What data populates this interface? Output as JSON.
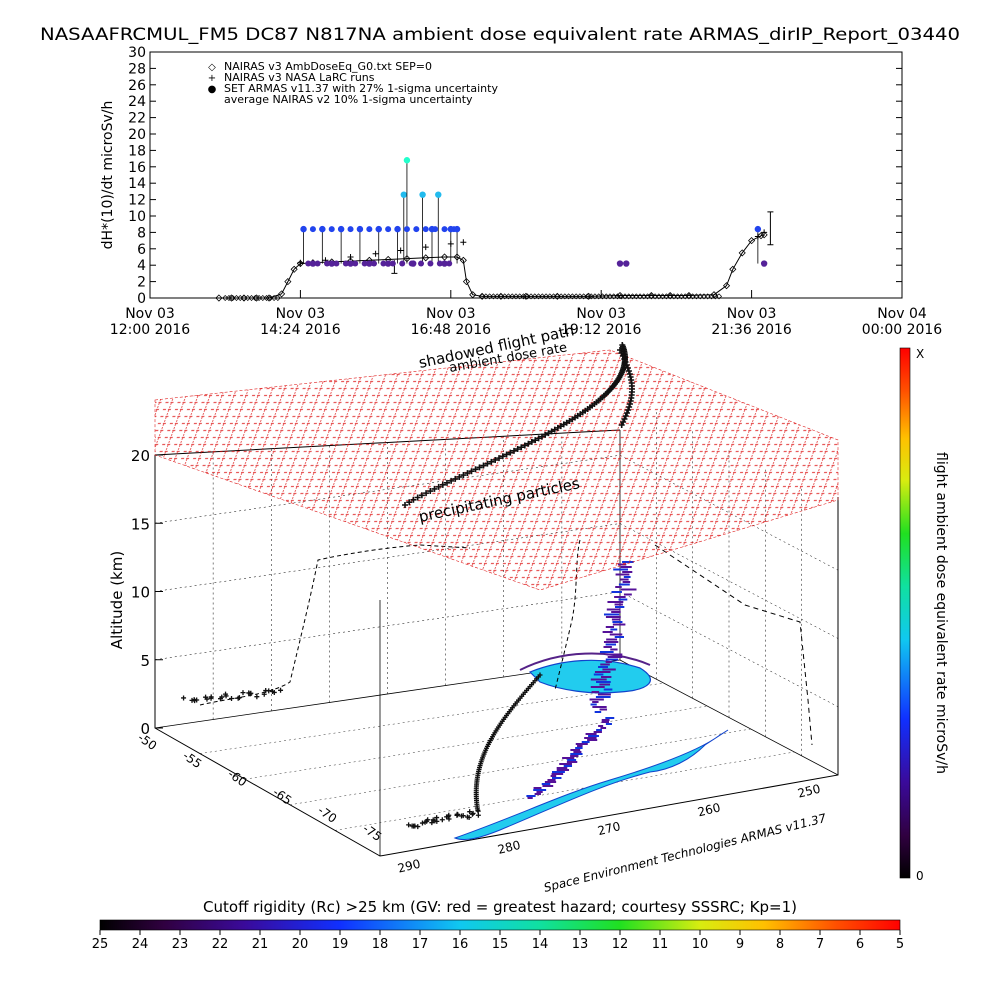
{
  "title": "NASAAFRCMUL_FM5 DC87 N817NA ambient dose equivalent rate ARMAS_dirIP_Report_03440",
  "colors": {
    "background": "#ffffff",
    "grid_red": "#dd1111",
    "armas_blue": "#1133dd",
    "armas_cyan": "#22ccee",
    "armas_purple": "#551199",
    "track": "#111111"
  },
  "chart_data": [
    {
      "type": "line",
      "name": "time-series",
      "ylabel": "dH*(10)/dt microSv/h",
      "ylim": [
        0,
        30
      ],
      "yticks": [
        0,
        2,
        4,
        6,
        8,
        10,
        12,
        14,
        16,
        18,
        20,
        22,
        24,
        26,
        28,
        30
      ],
      "xlim_hours": [
        12.0,
        24.0
      ],
      "xticks": [
        {
          "line1": "Nov 03",
          "line2": "12:00 2016",
          "hour": 12.0
        },
        {
          "line1": "Nov 03",
          "line2": "14:24 2016",
          "hour": 14.4
        },
        {
          "line1": "Nov 03",
          "line2": "16:48 2016",
          "hour": 16.8
        },
        {
          "line1": "Nov 03",
          "line2": "19:12 2016",
          "hour": 19.2
        },
        {
          "line1": "Nov 03",
          "line2": "21:36 2016",
          "hour": 21.6
        },
        {
          "line1": "Nov 04",
          "line2": "00:00 2016",
          "hour": 24.0
        }
      ],
      "legend": [
        {
          "symbol": "◇",
          "text": "NAIRAS v3 AmbDoseEq_G0.txt SEP=0"
        },
        {
          "symbol": "+",
          "text": "NAIRAS v3 NASA LaRC runs"
        },
        {
          "symbol": "●",
          "text": "SET ARMAS v11.37 with 27% 1-sigma uncertainty"
        },
        {
          "symbol": "",
          "text": "average NAIRAS v2 10% 1-sigma uncertainty"
        }
      ],
      "series": [
        {
          "name": "NAIRAS v3 AmbDoseEq_G0.txt SEP=0",
          "x": [
            13.1,
            13.3,
            13.5,
            13.7,
            13.9,
            14.1,
            14.2,
            14.3,
            14.4,
            14.6,
            14.9,
            15.2,
            15.5,
            15.8,
            16.1,
            16.4,
            16.7,
            16.9,
            17.0,
            17.05,
            17.15,
            17.3,
            17.6,
            18.0,
            18.5,
            19.0,
            19.5,
            20.0,
            20.3,
            20.6,
            21.0,
            21.2,
            21.3,
            21.45,
            21.6,
            21.75,
            21.8
          ],
          "y": [
            0,
            0,
            0,
            0,
            0,
            0.5,
            2.0,
            3.5,
            4.2,
            4.3,
            4.4,
            4.5,
            4.6,
            4.7,
            4.8,
            4.9,
            5.0,
            5.0,
            4.6,
            2.0,
            0.4,
            0.2,
            0.2,
            0.2,
            0.2,
            0.2,
            0.3,
            0.3,
            0.3,
            0.3,
            0.4,
            1.5,
            3.5,
            5.5,
            7.0,
            7.6,
            7.7
          ]
        },
        {
          "name": "NAIRAS v3 NASA LaRC runs",
          "x": [
            14.4,
            14.8,
            15.2,
            15.6,
            16.0,
            16.4,
            16.8,
            17.0,
            21.7,
            21.8
          ],
          "y": [
            4.3,
            4.6,
            5.0,
            5.4,
            5.8,
            6.2,
            6.6,
            6.8,
            7.5,
            8.0
          ]
        },
        {
          "name": "SET ARMAS v11.37 with 27% 1-sigma uncertainty",
          "x": [
            14.45,
            14.6,
            14.75,
            14.9,
            15.05,
            15.2,
            15.35,
            15.5,
            15.65,
            15.8,
            15.95,
            16.05,
            16.1,
            16.2,
            16.35,
            16.5,
            16.6,
            16.7,
            16.8,
            16.9,
            19.5,
            19.6,
            21.7,
            21.8
          ],
          "y": [
            8.4,
            4.2,
            8.4,
            4.2,
            8.4,
            4.2,
            8.4,
            4.2,
            8.4,
            4.2,
            8.4,
            12.6,
            16.8,
            4.2,
            12.6,
            8.4,
            12.6,
            4.2,
            8.4,
            8.4,
            4.2,
            4.2,
            8.4,
            4.2
          ]
        }
      ]
    },
    {
      "type": "scatter",
      "name": "3d-flight-path",
      "zlabel": "Altitude (km)",
      "zlim": [
        0,
        20
      ],
      "zticks": [
        0,
        5,
        10,
        15,
        20
      ],
      "lat_ticks": [
        "-50",
        "-55",
        "-60",
        "-65",
        "-70",
        "-75"
      ],
      "lon_ticks": [
        "250",
        "260",
        "270",
        "280",
        "290"
      ],
      "annotations": [
        "shadowed flight path",
        "ambient dose rate",
        "precipitating particles",
        "Space Environment Technologies ARMAS v11.37"
      ],
      "right_colorbar": {
        "label": "flight ambient dose equivalent rate microSv/h",
        "top": "X",
        "bottom": "0"
      }
    },
    {
      "type": "heatmap",
      "name": "cutoff-rigidity-colorbar",
      "label": "Cutoff rigidity (Rc) >25 km (GV: red = greatest hazard; courtesy SSSRC; Kp=1)",
      "ticks": [
        "25",
        "24",
        "23",
        "22",
        "21",
        "20",
        "19",
        "18",
        "17",
        "16",
        "15",
        "14",
        "13",
        "12",
        "11",
        "10",
        "9",
        "8",
        "7",
        "6",
        "5"
      ]
    }
  ]
}
